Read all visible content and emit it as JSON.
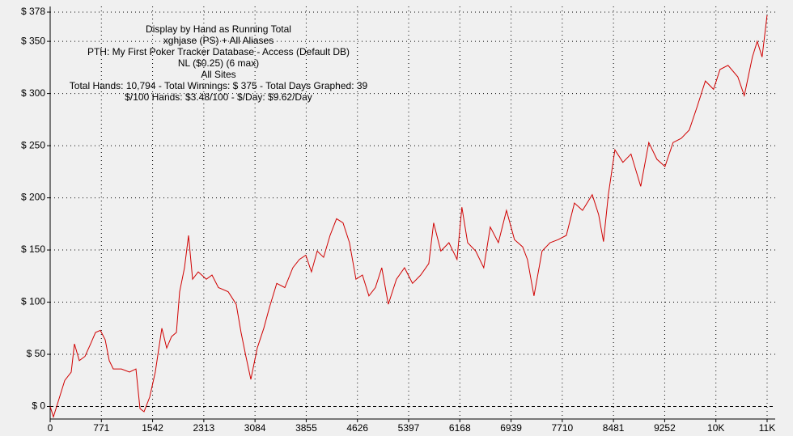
{
  "chart_data": {
    "type": "line",
    "title": "Display by Hand as Running Total",
    "annotations": [
      "xghjase (PS) + All Aliases",
      "PTH: My First Poker Tracker Database - Access (Default DB)",
      "NL ($0.25) (6 max)",
      "All Sites",
      "Total Hands: 10,794 - Total Winnings: $ 375 - Total Days Graphed: 39",
      "$/100 Hands: $3.48/100 - $/Day: $9.62/Day"
    ],
    "color": "#d00000",
    "grid": true,
    "xlim": [
      0,
      10794
    ],
    "ylim": [
      -12,
      378
    ],
    "xticks": [
      0,
      771,
      1542,
      2313,
      3084,
      3855,
      4626,
      5397,
      6168,
      6939,
      7710,
      8481,
      9252,
      {
        "value": 10023,
        "label": "10K"
      },
      {
        "value": 10794,
        "label": "11K"
      }
    ],
    "yticks": [
      {
        "value": 0,
        "label": "$ 0"
      },
      {
        "value": 50,
        "label": "$ 50"
      },
      {
        "value": 100,
        "label": "$ 100"
      },
      {
        "value": 150,
        "label": "$ 150"
      },
      {
        "value": 200,
        "label": "$ 200"
      },
      {
        "value": 250,
        "label": "$ 250"
      },
      {
        "value": 300,
        "label": "$ 300"
      },
      {
        "value": 350,
        "label": "$ 350"
      },
      {
        "value": 378,
        "label": "$ 378"
      }
    ],
    "x": [
      0,
      49,
      122,
      219,
      317,
      365,
      438,
      524,
      609,
      682,
      755,
      828,
      889,
      950,
      1072,
      1194,
      1291,
      1352,
      1413,
      1498,
      1583,
      1681,
      1754,
      1827,
      1900,
      1949,
      2022,
      2083,
      2144,
      2229,
      2351,
      2436,
      2533,
      2680,
      2801,
      2874,
      2947,
      3021,
      3118,
      3216,
      3301,
      3411,
      3533,
      3654,
      3752,
      3849,
      3934,
      4020,
      4117,
      4214,
      4312,
      4409,
      4506,
      4604,
      4701,
      4799,
      4896,
      4993,
      5091,
      5213,
      5335,
      5456,
      5578,
      5700,
      5773,
      5882,
      6004,
      6126,
      6199,
      6285,
      6407,
      6528,
      6626,
      6748,
      6870,
      6991,
      7113,
      7186,
      7284,
      7406,
      7527,
      7649,
      7771,
      7893,
      8015,
      8161,
      8258,
      8331,
      8404,
      8502,
      8623,
      8745,
      8891,
      9013,
      9135,
      9257,
      9378,
      9500,
      9622,
      9744,
      9865,
      9987,
      10085,
      10206,
      10353,
      10450,
      10572,
      10645,
      10718,
      10791,
      10794
    ],
    "values": [
      0,
      -10,
      5,
      25,
      33,
      60,
      44,
      48,
      60,
      71,
      73,
      64,
      44,
      36,
      36,
      33,
      36,
      -2,
      -5,
      9,
      33,
      75,
      56,
      67,
      71,
      110,
      133,
      164,
      122,
      129,
      122,
      126,
      114,
      110,
      98,
      71,
      48,
      26,
      56,
      75,
      95,
      118,
      114,
      133,
      141,
      145,
      129,
      149,
      143,
      164,
      180,
      176,
      157,
      122,
      126,
      106,
      114,
      133,
      98,
      122,
      133,
      118,
      126,
      137,
      176,
      149,
      157,
      141,
      191,
      157,
      149,
      133,
      172,
      157,
      188,
      160,
      153,
      141,
      106,
      149,
      157,
      160,
      164,
      195,
      188,
      203,
      184,
      158,
      203,
      246,
      234,
      242,
      211,
      253,
      237,
      230,
      253,
      257,
      265,
      288,
      312,
      304,
      323,
      327,
      316,
      298,
      335,
      350,
      335,
      374,
      375
    ]
  }
}
